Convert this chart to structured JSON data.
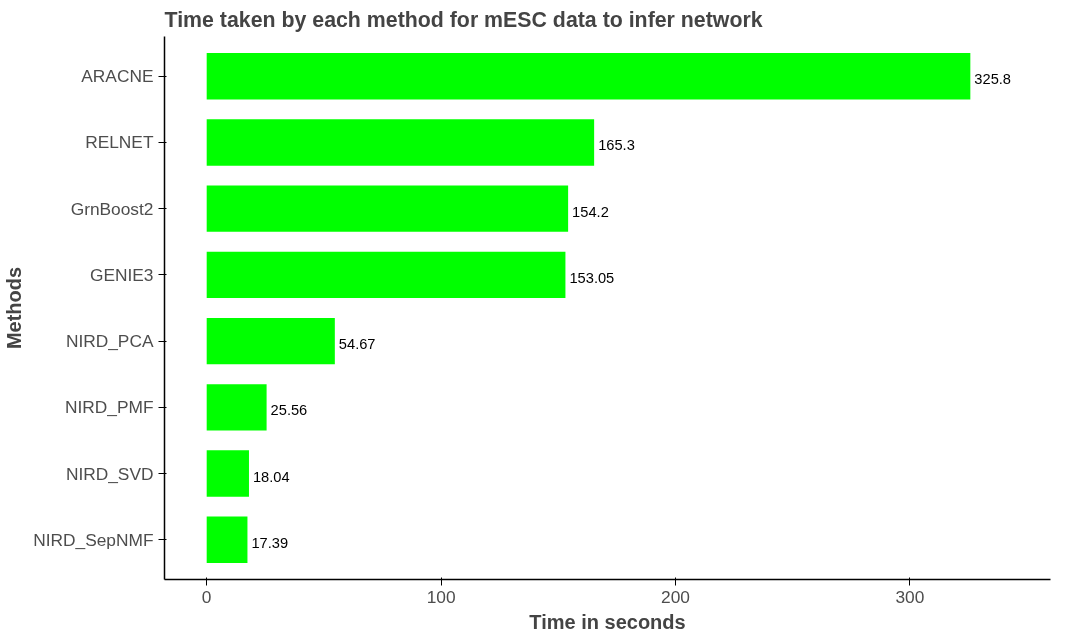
{
  "chart_data": {
    "type": "bar",
    "orientation": "horizontal",
    "title": "Time taken by each method for mESC data to infer network",
    "xlabel": "Time in seconds",
    "ylabel": "Methods",
    "categories": [
      "ARACNE",
      "RELNET",
      "GrnBoost2",
      "GENIE3",
      "NIRD_PCA",
      "NIRD_PMF",
      "NIRD_SVD",
      "NIRD_SepNMF"
    ],
    "values": [
      325.8,
      165.3,
      154.2,
      153.05,
      54.67,
      25.56,
      18.04,
      17.39
    ],
    "color": "#00ff00",
    "data_labels": true,
    "xlim": [
      -18,
      360
    ],
    "xticks": [
      0,
      100,
      200,
      300
    ],
    "grid": false
  }
}
